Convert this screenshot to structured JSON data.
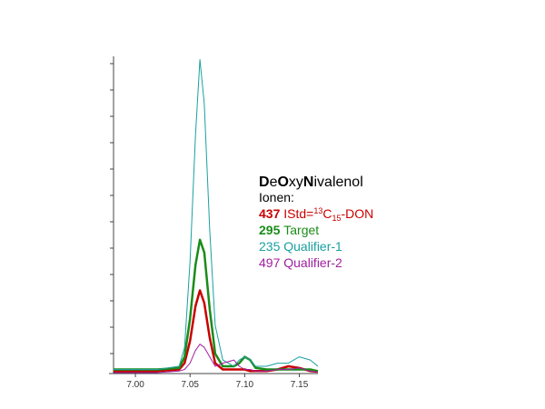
{
  "chart_data": {
    "type": "line",
    "title_parts": [
      {
        "text": "D",
        "bold": true
      },
      {
        "text": "e",
        "bold": false
      },
      {
        "text": "O",
        "bold": true
      },
      {
        "text": "xy",
        "bold": false
      },
      {
        "text": "N",
        "bold": true
      },
      {
        "text": "ivalenol",
        "bold": false
      }
    ],
    "legend_heading": "Ionen:",
    "x": [
      6.98,
      7.0,
      7.02,
      7.04,
      7.045,
      7.05,
      7.055,
      7.059,
      7.063,
      7.068,
      7.073,
      7.08,
      7.09,
      7.095,
      7.1,
      7.105,
      7.11,
      7.12,
      7.13,
      7.14,
      7.15,
      7.16,
      7.167
    ],
    "series": [
      {
        "ion": "437",
        "ion_bold": true,
        "color": "#c80000",
        "width": 2.5,
        "label_parts": [
          {
            "text": "IStd=",
            "shift": "none"
          },
          {
            "text": "13",
            "shift": "super"
          },
          {
            "text": "C",
            "shift": "none"
          },
          {
            "text": "15",
            "shift": "sub"
          },
          {
            "text": "-DON",
            "shift": "none"
          }
        ],
        "values": [
          0.5,
          0.5,
          0.5,
          1,
          3,
          10,
          21,
          26,
          22,
          11,
          3,
          1,
          1,
          1,
          1,
          0.5,
          0.5,
          0.5,
          1,
          2,
          1.5,
          0.5,
          0.3
        ]
      },
      {
        "ion": "295",
        "ion_bold": true,
        "color": "#1a8c1a",
        "width": 2.5,
        "label_parts": [
          {
            "text": "Target",
            "shift": "none"
          }
        ],
        "values": [
          1,
          1,
          1,
          1.5,
          5,
          17,
          34,
          42,
          38,
          20,
          6,
          2,
          2,
          3,
          5,
          4,
          1.5,
          1,
          1,
          1,
          1,
          1,
          0.5
        ]
      },
      {
        "ion": "235",
        "ion_bold": false,
        "color": "#1aa0a0",
        "width": 1,
        "label_parts": [
          {
            "text": "Qualifier-1",
            "shift": "none"
          }
        ],
        "values": [
          1,
          1,
          1,
          2,
          8,
          35,
          75,
          99,
          85,
          45,
          15,
          4,
          2,
          4,
          5,
          4,
          2,
          2,
          3,
          3,
          5,
          4,
          2
        ]
      },
      {
        "ion": "497",
        "ion_bold": false,
        "color": "#a020a0",
        "width": 1,
        "label_parts": [
          {
            "text": "Qualifier-2",
            "shift": "none"
          }
        ],
        "values": [
          0,
          0,
          0,
          0.5,
          1,
          3,
          7,
          9,
          8,
          5,
          2,
          3,
          4,
          2,
          1,
          1,
          0.5,
          0.5,
          1,
          1,
          1.5,
          0.5,
          0.2
        ]
      }
    ],
    "xlim": [
      6.98,
      7.167
    ],
    "xticks": [
      {
        "value": 7.0,
        "label": "7.00"
      },
      {
        "value": 7.05,
        "label": "7.05"
      },
      {
        "value": 7.1,
        "label": "7.10"
      },
      {
        "value": 7.15,
        "label": "7.15"
      }
    ],
    "ylim": [
      0,
      100
    ]
  }
}
